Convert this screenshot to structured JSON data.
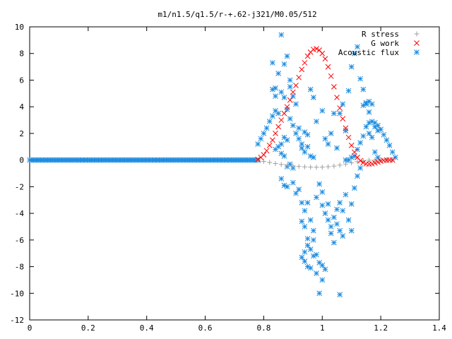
{
  "chart_data": {
    "type": "scatter",
    "title": "m1/n1.5/q1.5/r-+.62-j321/M0.05/512",
    "xlabel": "",
    "ylabel": "",
    "xlim": [
      0,
      1.4
    ],
    "ylim": [
      -12,
      10
    ],
    "xticks": [
      "0",
      "0.2",
      "0.4",
      "0.6",
      "0.8",
      "1",
      "1.2",
      "1.4"
    ],
    "yticks": [
      "10",
      "8",
      "6",
      "4",
      "2",
      "0",
      "-2",
      "-4",
      "-6",
      "-8",
      "-10",
      "-12"
    ],
    "grid": false,
    "legend_position": "top-right",
    "series": [
      {
        "name": "R stress",
        "marker": "+",
        "color": "#a0a0a0",
        "points": [
          [
            0.78,
            0.0
          ],
          [
            0.8,
            -0.1
          ],
          [
            0.82,
            -0.18
          ],
          [
            0.84,
            -0.26
          ],
          [
            0.86,
            -0.33
          ],
          [
            0.88,
            -0.39
          ],
          [
            0.9,
            -0.44
          ],
          [
            0.92,
            -0.48
          ],
          [
            0.94,
            -0.51
          ],
          [
            0.96,
            -0.53
          ],
          [
            0.98,
            -0.54
          ],
          [
            1.0,
            -0.53
          ],
          [
            1.02,
            -0.5
          ],
          [
            1.04,
            -0.45
          ],
          [
            1.06,
            -0.38
          ],
          [
            1.08,
            -0.3
          ],
          [
            1.1,
            -0.21
          ],
          [
            1.12,
            -0.12
          ],
          [
            1.14,
            -0.05
          ],
          [
            1.16,
            -0.01
          ],
          [
            1.18,
            0.0
          ],
          [
            1.2,
            0.0
          ],
          [
            1.22,
            0.0
          ],
          [
            1.24,
            0.0
          ]
        ]
      },
      {
        "name": "G work",
        "marker": "x",
        "color": "#ff0000",
        "points": [
          [
            0.78,
            0.05
          ],
          [
            0.79,
            0.2
          ],
          [
            0.8,
            0.4
          ],
          [
            0.81,
            0.7
          ],
          [
            0.82,
            1.1
          ],
          [
            0.83,
            1.5
          ],
          [
            0.84,
            2.0
          ],
          [
            0.85,
            2.5
          ],
          [
            0.86,
            3.0
          ],
          [
            0.87,
            3.5
          ],
          [
            0.88,
            4.0
          ],
          [
            0.89,
            4.5
          ],
          [
            0.9,
            5.1
          ],
          [
            0.91,
            5.6
          ],
          [
            0.92,
            6.2
          ],
          [
            0.93,
            6.8
          ],
          [
            0.94,
            7.3
          ],
          [
            0.95,
            7.8
          ],
          [
            0.96,
            8.1
          ],
          [
            0.97,
            8.3
          ],
          [
            0.98,
            8.35
          ],
          [
            0.99,
            8.25
          ],
          [
            1.0,
            8.0
          ],
          [
            1.01,
            7.6
          ],
          [
            1.02,
            7.0
          ],
          [
            1.03,
            6.3
          ],
          [
            1.04,
            5.5
          ],
          [
            1.05,
            4.7
          ],
          [
            1.06,
            3.9
          ],
          [
            1.07,
            3.1
          ],
          [
            1.08,
            2.4
          ],
          [
            1.09,
            1.7
          ],
          [
            1.1,
            1.1
          ],
          [
            1.11,
            0.6
          ],
          [
            1.12,
            0.2
          ],
          [
            1.13,
            -0.05
          ],
          [
            1.14,
            -0.2
          ],
          [
            1.15,
            -0.28
          ],
          [
            1.16,
            -0.3
          ],
          [
            1.17,
            -0.28
          ],
          [
            1.18,
            -0.22
          ],
          [
            1.19,
            -0.15
          ],
          [
            1.2,
            -0.08
          ],
          [
            1.21,
            -0.03
          ],
          [
            1.22,
            0.0
          ],
          [
            1.23,
            0.0
          ],
          [
            1.24,
            0.0
          ]
        ]
      },
      {
        "name": "Acoustic flux",
        "marker": "*",
        "color": "#1c8ce0",
        "points": [
          [
            0.0,
            0
          ],
          [
            0.02,
            0
          ],
          [
            0.04,
            0
          ],
          [
            0.06,
            0
          ],
          [
            0.08,
            0
          ],
          [
            0.1,
            0
          ],
          [
            0.12,
            0
          ],
          [
            0.14,
            0
          ],
          [
            0.16,
            0
          ],
          [
            0.18,
            0
          ],
          [
            0.2,
            0
          ],
          [
            0.22,
            0
          ],
          [
            0.24,
            0
          ],
          [
            0.26,
            0
          ],
          [
            0.28,
            0
          ],
          [
            0.3,
            0
          ],
          [
            0.32,
            0
          ],
          [
            0.34,
            0
          ],
          [
            0.36,
            0
          ],
          [
            0.38,
            0
          ],
          [
            0.4,
            0
          ],
          [
            0.42,
            0
          ],
          [
            0.44,
            0
          ],
          [
            0.46,
            0
          ],
          [
            0.48,
            0
          ],
          [
            0.5,
            0
          ],
          [
            0.52,
            0
          ],
          [
            0.54,
            0
          ],
          [
            0.56,
            0
          ],
          [
            0.58,
            0
          ],
          [
            0.6,
            0
          ],
          [
            0.62,
            0
          ],
          [
            0.64,
            0
          ],
          [
            0.66,
            0
          ],
          [
            0.68,
            0
          ],
          [
            0.7,
            0
          ],
          [
            0.72,
            0
          ],
          [
            0.74,
            0
          ],
          [
            0.76,
            0
          ],
          [
            0.78,
            0
          ],
          [
            0.78,
            1.2
          ],
          [
            0.79,
            1.6
          ],
          [
            0.8,
            2.0
          ],
          [
            0.81,
            2.4
          ],
          [
            0.82,
            2.9
          ],
          [
            0.83,
            3.3
          ],
          [
            0.84,
            3.7
          ],
          [
            0.85,
            3.5
          ],
          [
            0.86,
            9.4
          ],
          [
            0.87,
            7.2
          ],
          [
            0.88,
            7.8
          ],
          [
            0.89,
            6.0
          ],
          [
            0.89,
            5.5
          ],
          [
            0.9,
            4.8
          ],
          [
            0.91,
            4.2
          ],
          [
            0.92,
            2.4
          ],
          [
            0.93,
            1.2
          ],
          [
            0.94,
            2.1
          ],
          [
            0.95,
            1.9
          ],
          [
            0.96,
            0.3
          ],
          [
            0.97,
            0.2
          ],
          [
            0.84,
            5.4
          ],
          [
            0.83,
            7.3
          ],
          [
            0.83,
            5.3
          ],
          [
            0.84,
            4.8
          ],
          [
            0.85,
            6.5
          ],
          [
            0.86,
            5.1
          ],
          [
            0.87,
            4.7
          ],
          [
            0.88,
            3.8
          ],
          [
            0.89,
            3.1
          ],
          [
            0.9,
            2.6
          ],
          [
            0.91,
            2.0
          ],
          [
            0.92,
            1.6
          ],
          [
            0.93,
            0.9
          ],
          [
            0.94,
            0.6
          ],
          [
            0.95,
            1.0
          ],
          [
            0.87,
            1.7
          ],
          [
            0.88,
            1.5
          ],
          [
            0.86,
            1.2
          ],
          [
            0.85,
            1.0
          ],
          [
            0.84,
            0.8
          ],
          [
            0.86,
            0.5
          ],
          [
            0.87,
            0.3
          ],
          [
            0.88,
            -0.5
          ],
          [
            0.89,
            -0.3
          ],
          [
            0.9,
            -0.6
          ],
          [
            0.86,
            -1.4
          ],
          [
            0.87,
            -1.9
          ],
          [
            0.88,
            -2.0
          ],
          [
            0.9,
            -1.7
          ],
          [
            0.91,
            -2.5
          ],
          [
            0.92,
            -2.2
          ],
          [
            0.93,
            -3.2
          ],
          [
            0.94,
            -3.8
          ],
          [
            0.95,
            -3.2
          ],
          [
            0.93,
            -4.6
          ],
          [
            0.94,
            -5.0
          ],
          [
            0.95,
            -5.9
          ],
          [
            0.96,
            -4.5
          ],
          [
            0.95,
            -6.4
          ],
          [
            0.96,
            -6.7
          ],
          [
            0.97,
            -5.3
          ],
          [
            0.97,
            -6.0
          ],
          [
            0.94,
            -6.9
          ],
          [
            0.93,
            -7.3
          ],
          [
            0.94,
            -7.6
          ],
          [
            0.95,
            -8.0
          ],
          [
            0.96,
            -8.1
          ],
          [
            0.97,
            -7.2
          ],
          [
            0.98,
            -7.1
          ],
          [
            0.99,
            -7.7
          ],
          [
            1.0,
            -7.9
          ],
          [
            0.98,
            -8.5
          ],
          [
            0.99,
            -10.0
          ],
          [
            1.0,
            -9.0
          ],
          [
            1.01,
            -8.2
          ],
          [
            1.06,
            -10.1
          ],
          [
            0.98,
            -2.8
          ],
          [
            0.99,
            -1.8
          ],
          [
            1.0,
            -2.4
          ],
          [
            1.0,
            -3.4
          ],
          [
            1.01,
            -4.0
          ],
          [
            1.02,
            -3.3
          ],
          [
            1.02,
            -4.5
          ],
          [
            1.03,
            -5.0
          ],
          [
            1.03,
            -5.5
          ],
          [
            1.04,
            -4.3
          ],
          [
            1.04,
            -6.2
          ],
          [
            1.05,
            -4.8
          ],
          [
            1.05,
            -3.7
          ],
          [
            1.06,
            -3.2
          ],
          [
            1.06,
            -5.3
          ],
          [
            1.07,
            -3.8
          ],
          [
            1.07,
            -5.7
          ],
          [
            1.08,
            -2.6
          ],
          [
            1.09,
            -4.5
          ],
          [
            1.1,
            -3.3
          ],
          [
            1.1,
            -5.3
          ],
          [
            1.11,
            -2.1
          ],
          [
            1.12,
            -1.2
          ],
          [
            1.13,
            -0.6
          ],
          [
            0.96,
            5.3
          ],
          [
            0.97,
            4.7
          ],
          [
            0.98,
            2.9
          ],
          [
            1.0,
            3.7
          ],
          [
            1.01,
            1.6
          ],
          [
            1.02,
            1.2
          ],
          [
            1.03,
            2.0
          ],
          [
            1.04,
            3.5
          ],
          [
            1.05,
            0.9
          ],
          [
            1.06,
            3.5
          ],
          [
            1.07,
            4.2
          ],
          [
            1.08,
            2.2
          ],
          [
            1.09,
            5.2
          ],
          [
            1.1,
            7.0
          ],
          [
            1.11,
            8.0
          ],
          [
            1.12,
            8.5
          ],
          [
            1.13,
            6.1
          ],
          [
            1.14,
            5.3
          ],
          [
            1.15,
            4.3
          ],
          [
            1.16,
            3.6
          ],
          [
            1.17,
            2.9
          ],
          [
            1.18,
            2.5
          ],
          [
            1.19,
            2.2
          ],
          [
            1.14,
            4.1
          ],
          [
            1.15,
            4.2
          ],
          [
            1.16,
            4.4
          ],
          [
            1.17,
            4.2
          ],
          [
            1.16,
            2.8
          ],
          [
            1.15,
            2.5
          ],
          [
            1.14,
            1.8
          ],
          [
            1.13,
            1.3
          ],
          [
            1.12,
            0.8
          ],
          [
            1.11,
            0.3
          ],
          [
            1.1,
            0.2
          ],
          [
            1.09,
            0.0
          ],
          [
            1.08,
            0.0
          ],
          [
            1.16,
            2.0
          ],
          [
            1.17,
            1.7
          ],
          [
            1.18,
            2.8
          ],
          [
            1.19,
            2.6
          ],
          [
            1.2,
            2.3
          ],
          [
            1.21,
            1.9
          ],
          [
            1.22,
            1.5
          ],
          [
            1.23,
            1.1
          ],
          [
            1.24,
            0.6
          ],
          [
            1.25,
            0.2
          ],
          [
            1.18,
            0.6
          ],
          [
            1.19,
            0.2
          ]
        ]
      }
    ]
  }
}
